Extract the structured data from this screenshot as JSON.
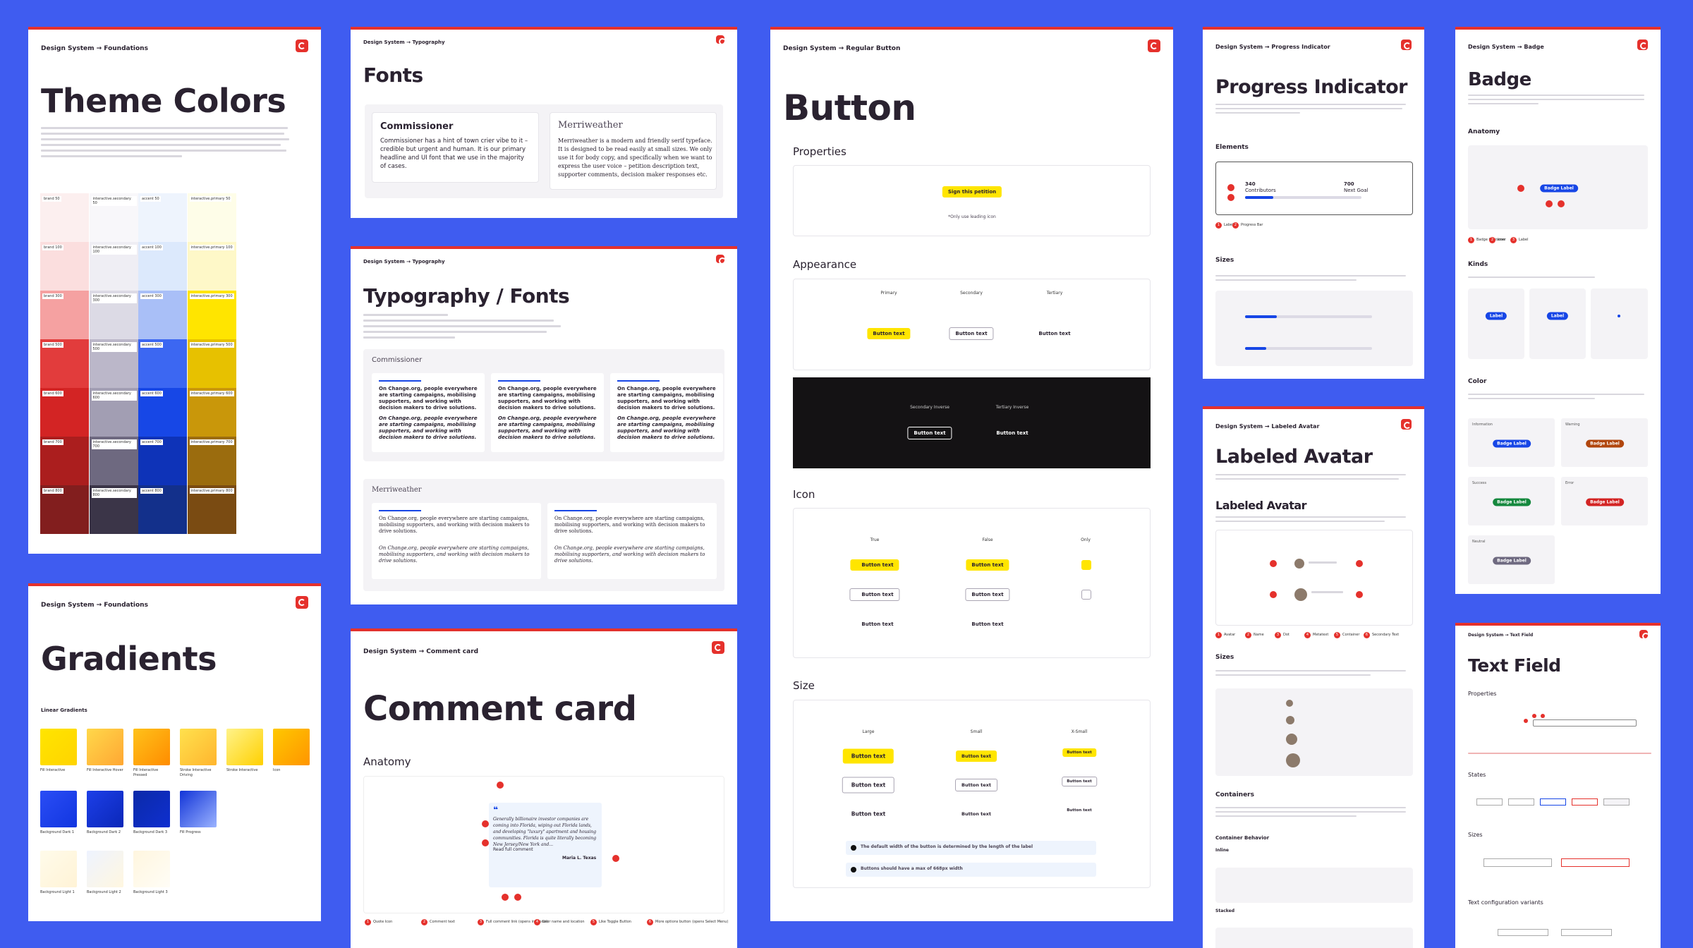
{
  "theme_colors": {
    "breadcrumb": "Design System → Foundations",
    "title": "Theme Colors",
    "palette": [
      {
        "labels": [
          "brand 50",
          "brand 100",
          "brand 300",
          "brand 500",
          "brand 600",
          "brand 700",
          "brand 800"
        ],
        "colors": [
          "#fcefef",
          "#fbdede",
          "#f5a1a1",
          "#e23c3c",
          "#d32424",
          "#ab1e1e",
          "#821e1e"
        ]
      },
      {
        "labels": [
          "interactive.secondary 50",
          "interactive.secondary 100",
          "interactive.secondary 300",
          "interactive.secondary 500",
          "interactive.secondary 600",
          "interactive.secondary 700",
          "interactive.secondary 800"
        ],
        "colors": [
          "#f8f7fa",
          "#efeef4",
          "#dcdae5",
          "#bbb7c9",
          "#a29eb3",
          "#6e6980",
          "#3b3548"
        ]
      },
      {
        "labels": [
          "accent 50",
          "accent 100",
          "accent 300",
          "accent 500",
          "accent 600",
          "accent 700",
          "accent 800"
        ],
        "colors": [
          "#eef4fd",
          "#dce9fc",
          "#a9bff7",
          "#3c67f2",
          "#1747e6",
          "#0e33b8",
          "#13308b"
        ]
      },
      {
        "labels": [
          "interactive.primary 50",
          "interactive.primary 100",
          "interactive.primary 300",
          "interactive.primary 500",
          "interactive.primary 600",
          "interactive.primary 700",
          "interactive.primary 800"
        ],
        "colors": [
          "#fefde8",
          "#fef8c8",
          "#ffe500",
          "#e7c100",
          "#c9970a",
          "#9b6c0e",
          "#7a4b12"
        ]
      }
    ]
  },
  "gradients": {
    "breadcrumb": "Design System → Foundations",
    "title": "Gradients",
    "section": "Linear Gradients",
    "swatches": [
      {
        "label": "Fill Interactive",
        "from": "#ffe500",
        "to": "#ffd400"
      },
      {
        "label": "Fill Interactive Hover",
        "from": "#ffd84a",
        "to": "#ffa733"
      },
      {
        "label": "Fill Interactive Pressed",
        "from": "#ffc21a",
        "to": "#ff8c00"
      },
      {
        "label": "Stroke Interactive Driving",
        "from": "#ffe14d",
        "to": "#ffb52e"
      },
      {
        "label": "Stroke Interactive",
        "from": "#fff38a",
        "to": "#ffd000"
      },
      {
        "label": "Icon",
        "from": "#ffc800",
        "to": "#ff9500"
      },
      {
        "label": "Background Dark 1",
        "from": "#2a4df5",
        "to": "#1236e0"
      },
      {
        "label": "Background Dark 2",
        "from": "#1d3fe8",
        "to": "#0a27b8"
      },
      {
        "label": "Background Dark 3",
        "from": "#0b2aa8",
        "to": "#0f2fd0"
      },
      {
        "label": "Fill Progress",
        "from": "#1234d8",
        "to": "#9bb3ff"
      },
      {
        "label": "Background Light 1",
        "from": "#fffbea",
        "to": "#fff3d6"
      },
      {
        "label": "Background Light 2",
        "from": "#eef3ff",
        "to": "#fff7e0"
      },
      {
        "label": "Background Light 3",
        "from": "#fff6df",
        "to": "#fffdf6"
      }
    ]
  },
  "fonts": {
    "breadcrumb": "Design System → Typography",
    "title": "Fonts",
    "commissioner_title": "Commissioner",
    "commissioner_text": "Commissioner has a hint of town crier vibe to it – credible but urgent and human. It is our primary headline and UI font that we use in the majority of cases.",
    "merriweather_title": "Merriweather",
    "merriweather_text": "Merriweather is a modern and friendly serif typeface. It is designed to be read easily at small sizes. We only use it for body copy, and specifically when we want to express the user voice – petition description text, supporter comments, decision maker responses etc."
  },
  "typography": {
    "breadcrumb": "Design System → Typography",
    "title": "Typography / Fonts",
    "commissioner": "Commissioner",
    "merriweather": "Merriweather",
    "sample": "On Change.org, people everywhere are starting campaigns, mobilising supporters, and working with decision makers to drive solutions."
  },
  "comment_card": {
    "breadcrumb": "Design System → Comment card",
    "title": "Comment card",
    "anatomy": "Anatomy",
    "comment": "Generally billionaire investor companies are coming into Florida, wiping out Florida lands, and developing \"luxury\" apartment and housing communities. Florida is quite literally becoming New Jersey/New York and...",
    "read_more": "Read full comment",
    "user": "Maria L. Texas",
    "legend": [
      {
        "n": 1,
        "label": "Quote Icon"
      },
      {
        "n": 2,
        "label": "Comment text"
      },
      {
        "n": 3,
        "label": "Full comment link (opens in modal)"
      },
      {
        "n": 4,
        "label": "User name and location"
      },
      {
        "n": 5,
        "label": "Like Toggle Button"
      },
      {
        "n": 6,
        "label": "More options button (opens Select Menu)"
      }
    ]
  },
  "button": {
    "breadcrumb": "Design System → Regular Button",
    "title": "Button",
    "properties": "Properties",
    "sign": "Sign this petition",
    "note": "*Only use leading icon",
    "appearance": "Appearance",
    "primary": "Primary",
    "secondary": "Secondary",
    "tertiary": "Tertiary",
    "secondary_inverse": "Secondary Inverse",
    "tertiary_inverse": "Tertiary Inverse",
    "button_text": "Button text",
    "icon": "Icon",
    "true": "True",
    "false": "False",
    "only": "Only",
    "size": "Size",
    "large": "Large",
    "small": "Small",
    "xsmall": "X-Small",
    "rule_1": "The default width of the button is determined by the length of the label",
    "rule_2": "Buttons should have a max of 668px width"
  },
  "progress_indicator": {
    "breadcrumb": "Design System → Progress Indicator",
    "title": "Progress Indicator",
    "elements": "Elements",
    "sizes": "Sizes",
    "count": "340",
    "contributors": "Contributors",
    "goal": "700",
    "next_goal": "Next Goal",
    "legend": [
      {
        "n": 1,
        "label": "Label"
      },
      {
        "n": 2,
        "label": "Progress Bar"
      }
    ]
  },
  "labeled_avatar": {
    "breadcrumb": "Design System → Labeled Avatar",
    "title": "Labeled Avatar",
    "subtitle": "Labeled Avatar",
    "sizes": "Sizes",
    "containers": "Containers",
    "behavior": "Container Behavior",
    "inline": "Inline",
    "stacked": "Stacked",
    "legend": [
      {
        "n": 1,
        "label": "Avatar"
      },
      {
        "n": 2,
        "label": "Name"
      },
      {
        "n": 3,
        "label": "Dot"
      },
      {
        "n": 4,
        "label": "Metatext"
      },
      {
        "n": 5,
        "label": "Container"
      },
      {
        "n": 6,
        "label": "Secondary Text"
      }
    ]
  },
  "badge": {
    "breadcrumb": "Design System → Badge",
    "title": "Badge",
    "anatomy": "Anatomy",
    "kinds": "Kinds",
    "color": "Color",
    "badge_label": "Badge Label",
    "label": "Label",
    "legend": [
      {
        "n": 1,
        "label": "Badge Container"
      },
      {
        "n": 2,
        "label": "Icon"
      },
      {
        "n": 3,
        "label": "Label"
      }
    ],
    "colors": [
      {
        "name": "Information",
        "color": "#1746e6"
      },
      {
        "name": "Warning",
        "color": "#b1460e"
      },
      {
        "name": "Success",
        "color": "#15883e"
      },
      {
        "name": "Error",
        "color": "#d32424"
      },
      {
        "name": "Neutral",
        "color": "#6e6980"
      }
    ]
  },
  "text_field": {
    "breadcrumb": "Design System → Text Field",
    "title": "Text Field",
    "properties": "Properties",
    "states": "States",
    "sizes": "Sizes",
    "variants": "Text configuration variants"
  }
}
